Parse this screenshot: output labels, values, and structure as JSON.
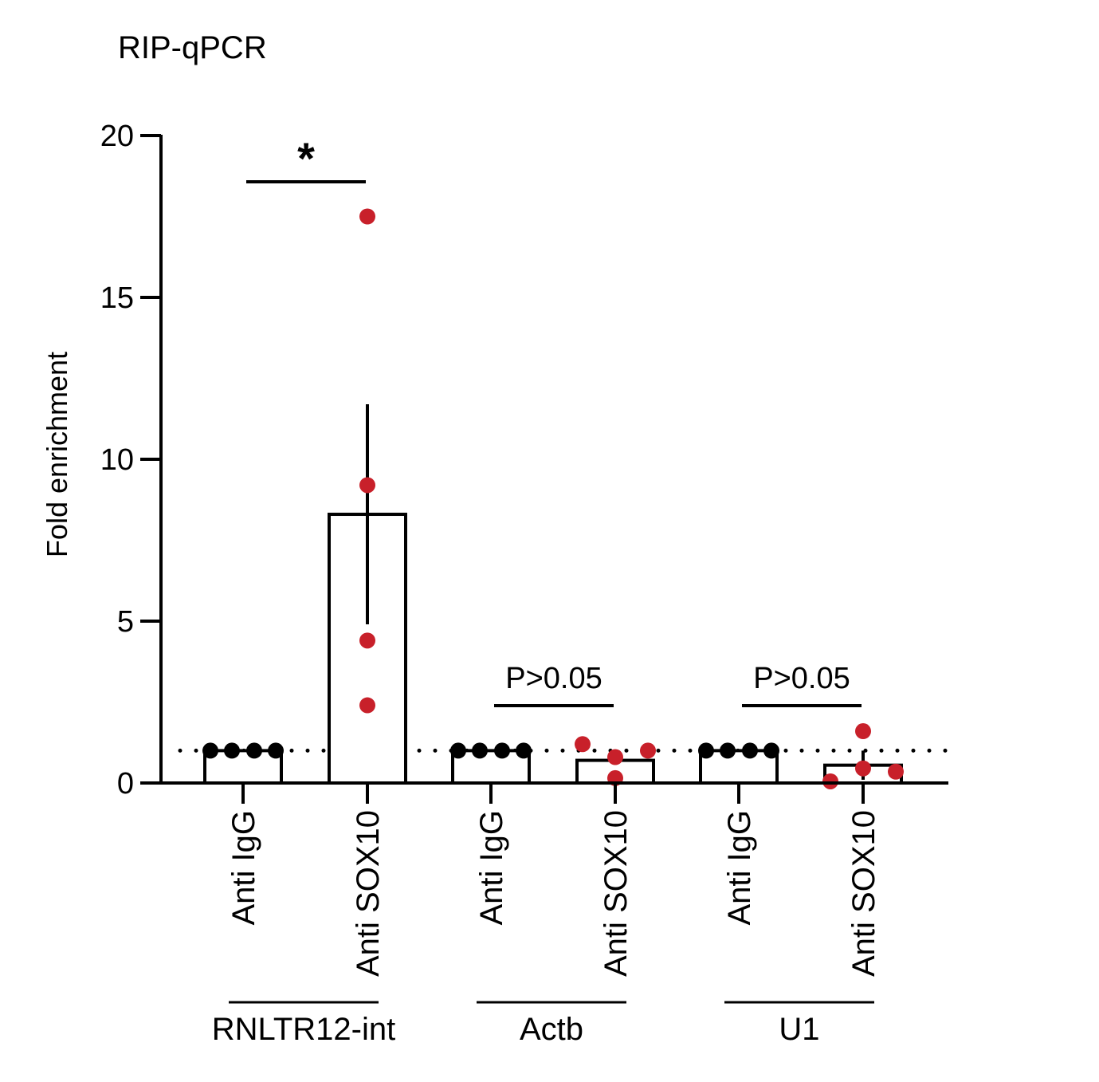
{
  "chart_data": {
    "type": "bar",
    "title": "RIP-qPCR",
    "ylabel": "Fold enrichment",
    "xlabel": "",
    "ylim": [
      0,
      20
    ],
    "yticks": [
      0,
      5,
      10,
      15,
      20
    ],
    "grid": false,
    "reference_line": 1,
    "categories": [
      "Anti IgG",
      "Anti SOX10",
      "Anti IgG",
      "Anti SOX10",
      "Anti IgG",
      "Anti SOX10"
    ],
    "groups": [
      {
        "label": "RNLTR12-int",
        "bars": [
          0,
          1
        ]
      },
      {
        "label": "Actb",
        "bars": [
          2,
          3
        ]
      },
      {
        "label": "U1",
        "bars": [
          4,
          5
        ]
      }
    ],
    "bars": [
      {
        "category": "Anti IgG",
        "group": "RNLTR12-int",
        "value": 1.0,
        "error": null,
        "points": [
          1.0,
          1.0,
          1.0,
          1.0
        ],
        "color": "#000000"
      },
      {
        "category": "Anti SOX10",
        "group": "RNLTR12-int",
        "value": 8.3,
        "error": 3.4,
        "points": [
          17.5,
          9.2,
          4.4,
          2.4
        ],
        "color": "#c8202a"
      },
      {
        "category": "Anti IgG",
        "group": "Actb",
        "value": 1.0,
        "error": null,
        "points": [
          1.0,
          1.0,
          1.0,
          1.0
        ],
        "color": "#000000"
      },
      {
        "category": "Anti SOX10",
        "group": "Actb",
        "value": 0.7,
        "error": null,
        "points": [
          1.2,
          0.8,
          0.15,
          1.0
        ],
        "color": "#c8202a"
      },
      {
        "category": "Anti IgG",
        "group": "U1",
        "value": 1.0,
        "error": null,
        "points": [
          1.0,
          1.0,
          1.0,
          1.0
        ],
        "color": "#000000"
      },
      {
        "category": "Anti SOX10",
        "group": "U1",
        "value": 0.55,
        "error": 0.45,
        "points": [
          0.05,
          1.6,
          0.45,
          0.35
        ],
        "color": "#c8202a"
      }
    ],
    "comparisons": [
      {
        "label": "*",
        "from": 0,
        "to": 1
      },
      {
        "label": "P>0.05",
        "from": 2,
        "to": 3
      },
      {
        "label": "P>0.05",
        "from": 4,
        "to": 5
      }
    ]
  }
}
